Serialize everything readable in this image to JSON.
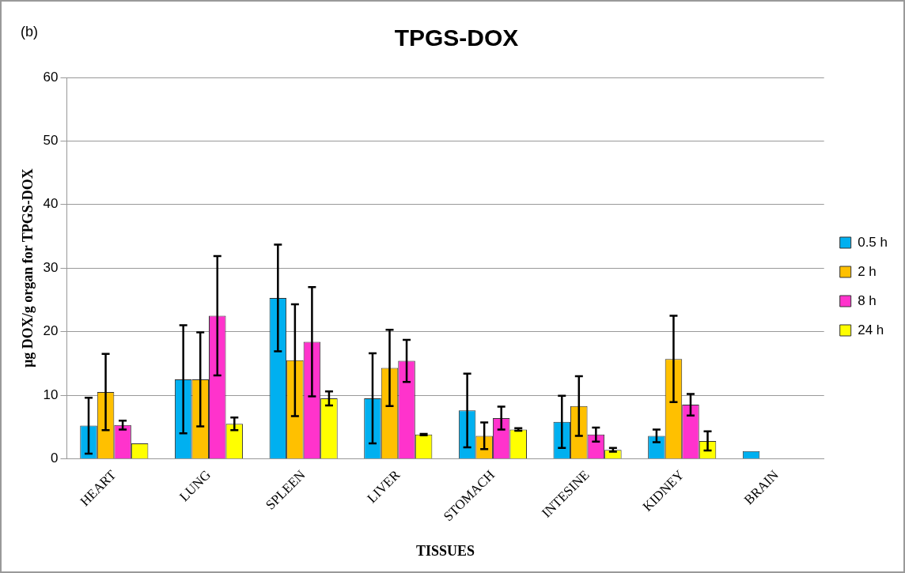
{
  "chart_data": {
    "type": "bar",
    "title": "TPGS-DOX",
    "xlabel": "TISSUES",
    "ylabel": "µg DOX/g organ for TPGS-DOX",
    "categories": [
      "HEART",
      "LUNG",
      "SPLEEN",
      "LIVER",
      "STOMACH",
      "INTESINE",
      "KIDNEY",
      "BRAIN"
    ],
    "series": [
      {
        "name": "0.5 h",
        "color": "#00b0f0",
        "values": [
          5.2,
          12.5,
          25.3,
          9.5,
          7.6,
          5.8,
          3.6,
          1.2
        ],
        "errors": [
          4.4,
          8.5,
          8.4,
          7.1,
          5.8,
          4.1,
          1.0,
          null
        ]
      },
      {
        "name": "2 h",
        "color": "#ffc000",
        "values": [
          10.5,
          12.5,
          15.5,
          14.3,
          3.6,
          8.3,
          15.7,
          null
        ],
        "errors": [
          6,
          7.4,
          8.8,
          6,
          2.1,
          4.7,
          6.8,
          null
        ]
      },
      {
        "name": "8 h",
        "color": "#ff33cc",
        "values": [
          5.3,
          22.5,
          18.4,
          15.4,
          6.4,
          3.8,
          8.5,
          null
        ],
        "errors": [
          0.7,
          9.4,
          8.6,
          3.3,
          1.8,
          1.1,
          1.7,
          null
        ]
      },
      {
        "name": "24 h",
        "color": "#ffff00",
        "values": [
          2.4,
          5.5,
          9.5,
          3.8,
          4.6,
          1.4,
          2.8,
          null
        ],
        "errors": [
          null,
          1,
          1.1,
          0.1,
          0.2,
          0.3,
          1.5,
          null
        ]
      }
    ],
    "ylim": [
      0,
      60
    ],
    "yticks": [
      0,
      10,
      20,
      30,
      40,
      50,
      60
    ],
    "grid": "y",
    "legend": "right",
    "annotations": [
      "(b)"
    ]
  }
}
